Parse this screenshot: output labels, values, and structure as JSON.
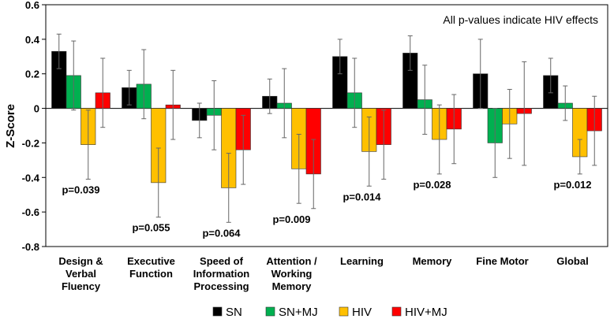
{
  "chart_data": {
    "type": "bar",
    "y_label": "Z-Score",
    "annotation": "All p-values indicate HIV effects",
    "categories": [
      [
        "Design &",
        "Verbal",
        "Fluency"
      ],
      [
        "Executive",
        "Function"
      ],
      [
        "Speed of",
        "Information",
        "Processing"
      ],
      [
        "Attention /",
        "Working",
        "Memory"
      ],
      [
        "Learning"
      ],
      [
        "Memory"
      ],
      [
        "Fine Motor"
      ],
      [
        "Global"
      ]
    ],
    "p_values": [
      "p=0.039",
      "p=0.055",
      "p=0.064",
      "p=0.009",
      "p=0.014",
      "p=0.028",
      null,
      "p=0.012"
    ],
    "series": [
      {
        "name": "SN",
        "color": "#000000",
        "values": [
          0.33,
          0.12,
          -0.07,
          0.07,
          0.3,
          0.32,
          0.2,
          0.19
        ],
        "errors": [
          0.1,
          0.1,
          0.1,
          0.1,
          0.1,
          0.1,
          0.2,
          0.1
        ]
      },
      {
        "name": "SN+MJ",
        "color": "#00b050",
        "values": [
          0.19,
          0.14,
          -0.04,
          0.03,
          0.09,
          0.05,
          -0.2,
          0.03
        ],
        "errors": [
          0.2,
          0.2,
          0.2,
          0.2,
          0.2,
          0.2,
          0.2,
          0.1
        ]
      },
      {
        "name": "HIV",
        "color": "#ffc000",
        "values": [
          -0.21,
          -0.43,
          -0.46,
          -0.35,
          -0.25,
          -0.18,
          -0.09,
          -0.28
        ],
        "errors": [
          0.2,
          0.2,
          0.2,
          0.2,
          0.2,
          0.2,
          0.2,
          0.1
        ]
      },
      {
        "name": "HIV+MJ",
        "color": "#ff0000",
        "values": [
          0.09,
          0.02,
          -0.24,
          -0.38,
          -0.21,
          -0.12,
          -0.03,
          -0.13
        ],
        "errors": [
          0.2,
          0.2,
          0.2,
          0.2,
          0.2,
          0.2,
          0.3,
          0.2
        ]
      }
    ],
    "ylim": [
      -0.8,
      0.6
    ],
    "yticks": [
      -0.8,
      -0.6,
      -0.4,
      -0.2,
      0,
      0.2,
      0.4,
      0.6
    ]
  }
}
